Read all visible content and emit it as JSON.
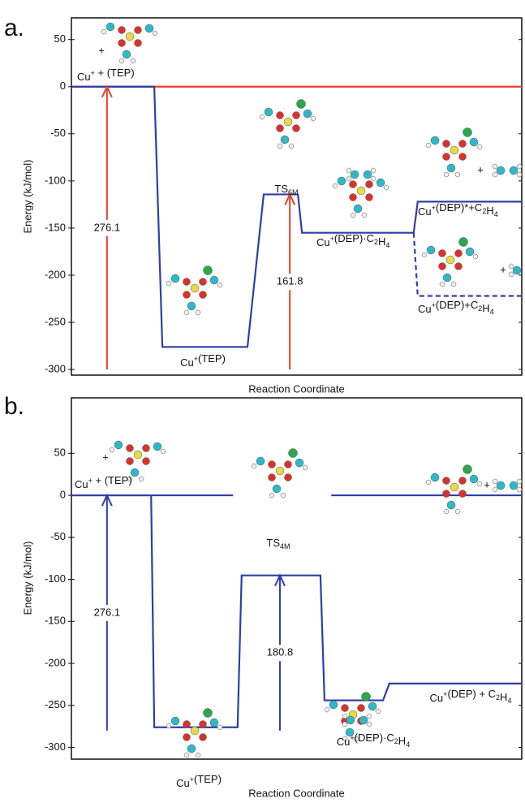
{
  "chart_data": [
    {
      "type": "energy-diagram",
      "panel_label": "a.",
      "ylabel": "Energy (kJ/mol)",
      "xlabel": "Reaction Coordinate",
      "xlim": [
        0,
        100
      ],
      "ylim": [
        -306,
        73
      ],
      "yticks": [
        50,
        0,
        -50,
        -100,
        -150,
        -200,
        -250,
        -300
      ],
      "series": [
        {
          "color": "#e8402a",
          "dash": false,
          "x": [
            0,
            100
          ],
          "values": [
            0,
            0
          ]
        },
        {
          "color": "#2e3fa8",
          "dash": false,
          "x": [
            0,
            18.4,
            20.2,
            39.1,
            42.7,
            50.3,
            51.2,
            76.0,
            76.9,
            100
          ],
          "values": [
            0,
            0,
            -276.1,
            -276.1,
            -114.3,
            -114.3,
            -155,
            -155,
            -122,
            -122
          ]
        },
        {
          "color": "#2e3fa8",
          "dash": true,
          "x": [
            76.0,
            76.9,
            100
          ],
          "values": [
            -155,
            -222,
            -222
          ]
        }
      ],
      "arrows": [
        {
          "color": "#e8402a",
          "x": 7.9,
          "from": -300,
          "to": 0,
          "value": 276.1
        },
        {
          "color": "#e8402a",
          "x": 48.5,
          "from": -300,
          "to": -114.3,
          "value": 161.8
        }
      ],
      "level_labels": [
        [
          "Cu",
          {
            "sup": "+"
          },
          " +  (TEP)"
        ],
        [
          "Cu",
          {
            "sup": "+"
          },
          "(TEP)"
        ],
        [
          "TS",
          {
            "sub": "6M"
          }
        ],
        [
          "Cu",
          {
            "sup": "+"
          },
          "(DEP)·C",
          {
            "sub": "2"
          },
          "H",
          {
            "sub": "4"
          }
        ],
        [
          "Cu",
          {
            "sup": "+"
          },
          "(DEP)*+C",
          {
            "sub": "2"
          },
          "H",
          {
            "sub": "4"
          }
        ],
        [
          "Cu",
          {
            "sup": "+"
          },
          "(DEP)+C",
          {
            "sub": "2"
          },
          "H",
          {
            "sub": "4"
          }
        ]
      ],
      "plus_signs": [
        "+",
        "+",
        "+"
      ]
    },
    {
      "type": "energy-diagram",
      "panel_label": "b.",
      "ylabel": "Energy (kJ/mol)",
      "xlabel": "Reaction Coordinate",
      "xlim": [
        0,
        100
      ],
      "ylim": [
        -314,
        116
      ],
      "yticks": [
        50,
        0,
        -50,
        -100,
        -150,
        -200,
        -250,
        -300
      ],
      "series": [
        {
          "color": "#2e3fa8",
          "dash": false,
          "x": [
            0,
            35.9,
            50,
            57.7,
            100
          ],
          "values": [
            0,
            0,
            null,
            0,
            0
          ]
        },
        {
          "color": "#2e3fa8",
          "dash": false,
          "x": [
            0,
            17.7,
            18.4,
            36.9,
            37.8,
            55.3,
            56.2,
            69.2,
            70.6,
            100
          ],
          "values": [
            0,
            0,
            -276.1,
            -276.1,
            -95.3,
            -95.3,
            -244,
            -244,
            -224,
            -224
          ]
        }
      ],
      "arrows": [
        {
          "color": "#2e3fa8",
          "x": 7.9,
          "from": -280,
          "to": 0,
          "value": 276.1
        },
        {
          "color": "#2e3fa8",
          "x": 46.3,
          "from": -280,
          "to": -95.3,
          "value": 180.8
        }
      ],
      "level_labels": [
        [
          "Cu",
          {
            "sup": "+"
          },
          " + (TEP)"
        ],
        [
          "Cu",
          {
            "sup": "+"
          },
          "(TEP)"
        ],
        [
          "TS",
          {
            "sub": "4M"
          }
        ],
        [
          "Cu",
          {
            "sup": "+"
          },
          "(DEP)·C",
          {
            "sub": "2"
          },
          "H",
          {
            "sub": "4"
          }
        ],
        [
          "Cu",
          {
            "sup": "+"
          },
          "(DEP) + C",
          {
            "sub": "2"
          },
          "H",
          {
            "sub": "4"
          }
        ]
      ],
      "plus_signs": [
        "+",
        "+"
      ]
    }
  ]
}
